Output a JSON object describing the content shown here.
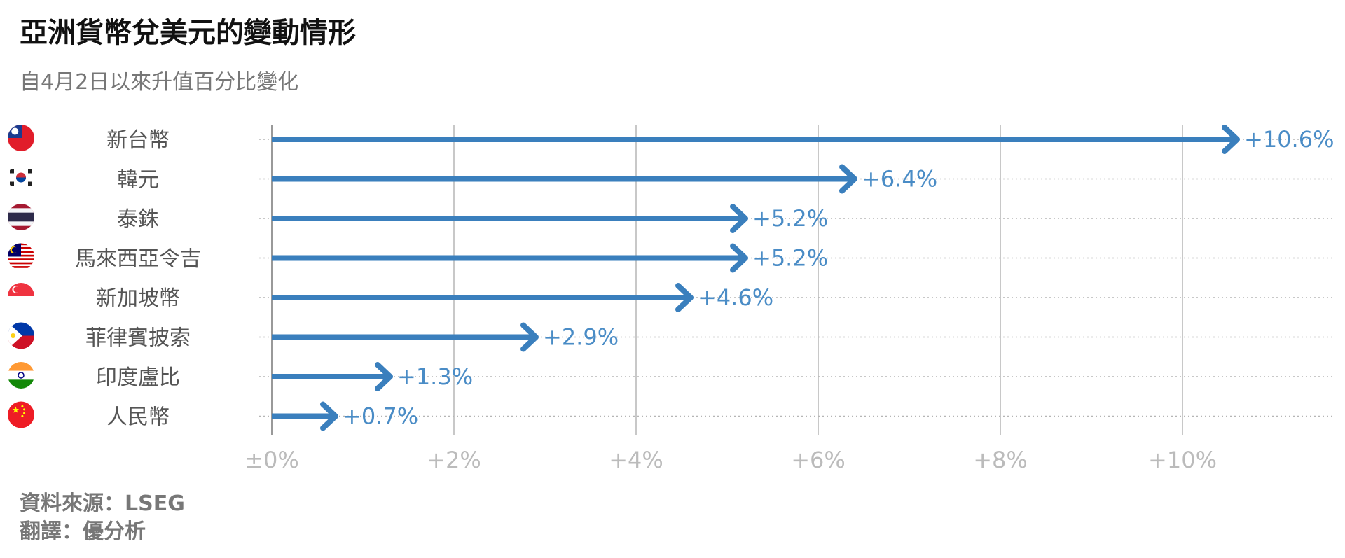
{
  "header": {
    "title": "亞洲貨幣兌美元的變動情形",
    "subtitle": "自4月2日以來升值百分比變化"
  },
  "footer": {
    "source": "資料來源：LSEG",
    "translation": "翻譯：優分析"
  },
  "colors": {
    "bar": "#3a7fbd",
    "value_label": "#4a8cc6",
    "tick_label": "#bbbbbb",
    "category_label": "#555555",
    "grid": "#c8c8c8"
  },
  "chart_data": {
    "type": "bar",
    "orientation": "horizontal",
    "marker": "arrow",
    "categories": [
      "新台幣",
      "韓元",
      "泰銖",
      "馬來西亞令吉",
      "新加坡幣",
      "菲律賓披索",
      "印度盧比",
      "人民幣"
    ],
    "flags": [
      "taiwan-flag-icon",
      "south-korea-flag-icon",
      "thailand-flag-icon",
      "malaysia-flag-icon",
      "singapore-flag-icon",
      "philippines-flag-icon",
      "india-flag-icon",
      "china-flag-icon"
    ],
    "values": [
      10.6,
      6.4,
      5.2,
      5.2,
      4.6,
      2.9,
      1.3,
      0.7
    ],
    "value_labels": [
      "+10.6%",
      "+6.4%",
      "+5.2%",
      "+5.2%",
      "+4.6%",
      "+2.9%",
      "+1.3%",
      "+0.7%"
    ],
    "xlim": [
      0,
      11.6
    ],
    "xticks": [
      0,
      2,
      4,
      6,
      8,
      10
    ],
    "xtick_labels": [
      "±0%",
      "+2%",
      "+4%",
      "+6%",
      "+8%",
      "+10%"
    ],
    "grid": true,
    "legend": "none"
  }
}
